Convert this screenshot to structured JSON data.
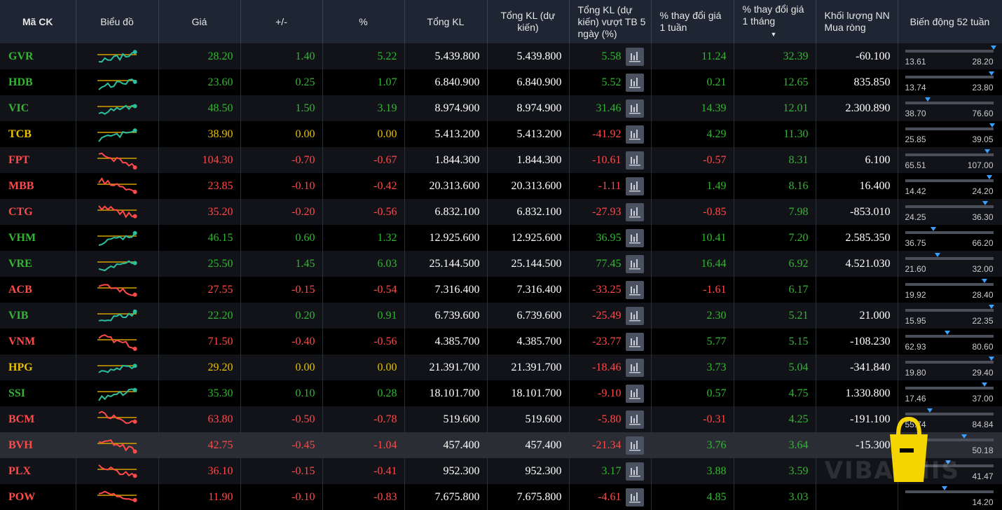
{
  "headers": {
    "symbol": "Mã CK",
    "chart": "Biểu đồ",
    "price": "Giá",
    "change": "+/-",
    "pct": "%",
    "total_vol": "Tổng KL",
    "est_vol": "Tổng KL (dự kiến)",
    "est_vs_avg": "Tổng KL (dự kiến) vượt TB 5 ngày (%)",
    "week_change": "% thay đổi giá 1 tuần",
    "month_change": "% thay đổi giá 1 tháng",
    "foreign_net": "Khối lượng NN Mua ròng",
    "range52": "Biến động 52 tuần"
  },
  "colors": {
    "up": "#33b733",
    "down": "#ff4a4a",
    "ref": "#e8c000",
    "teal": "#2bbfa0",
    "marker": "#3aa0ff"
  },
  "watermark": "VIBATHIS",
  "rows": [
    {
      "s": "GVR",
      "p": "28.20",
      "c": "1.40",
      "pct": "5.22",
      "tv": "5.439.800",
      "ev": "5.439.800",
      "ea": "5.58",
      "w": "11.24",
      "m": "32.39",
      "f": "-60.100",
      "lo": "13.61",
      "hi": "28.20",
      "pos": 1.0,
      "st": "up",
      "ea_st": "up",
      "w_st": "up",
      "m_st": "up"
    },
    {
      "s": "HDB",
      "p": "23.60",
      "c": "0.25",
      "pct": "1.07",
      "tv": "6.840.900",
      "ev": "6.840.900",
      "ea": "5.52",
      "w": "0.21",
      "m": "12.65",
      "f": "835.850",
      "lo": "13.74",
      "hi": "23.80",
      "pos": 0.98,
      "st": "up",
      "ea_st": "up",
      "w_st": "up",
      "m_st": "up"
    },
    {
      "s": "VIC",
      "p": "48.50",
      "c": "1.50",
      "pct": "3.19",
      "tv": "8.974.900",
      "ev": "8.974.900",
      "ea": "31.46",
      "w": "14.39",
      "m": "12.01",
      "f": "2.300.890",
      "lo": "38.70",
      "hi": "76.60",
      "pos": 0.26,
      "st": "up",
      "ea_st": "up",
      "w_st": "up",
      "m_st": "up"
    },
    {
      "s": "TCB",
      "p": "38.90",
      "c": "0.00",
      "pct": "0.00",
      "tv": "5.413.200",
      "ev": "5.413.200",
      "ea": "-41.92",
      "w": "4.29",
      "m": "11.30",
      "f": "",
      "lo": "25.85",
      "hi": "39.05",
      "pos": 0.99,
      "st": "ref",
      "ea_st": "down",
      "w_st": "up",
      "m_st": "up"
    },
    {
      "s": "FPT",
      "p": "104.30",
      "c": "-0.70",
      "pct": "-0.67",
      "tv": "1.844.300",
      "ev": "1.844.300",
      "ea": "-10.61",
      "w": "-0.57",
      "m": "8.31",
      "f": "6.100",
      "lo": "65.51",
      "hi": "107.00",
      "pos": 0.93,
      "st": "down",
      "ea_st": "down",
      "w_st": "down",
      "m_st": "up"
    },
    {
      "s": "MBB",
      "p": "23.85",
      "c": "-0.10",
      "pct": "-0.42",
      "tv": "20.313.600",
      "ev": "20.313.600",
      "ea": "-1.11",
      "w": "1.49",
      "m": "8.16",
      "f": "16.400",
      "lo": "14.42",
      "hi": "24.20",
      "pos": 0.96,
      "st": "down",
      "ea_st": "down",
      "w_st": "up",
      "m_st": "up"
    },
    {
      "s": "CTG",
      "p": "35.20",
      "c": "-0.20",
      "pct": "-0.56",
      "tv": "6.832.100",
      "ev": "6.832.100",
      "ea": "-27.93",
      "w": "-0.85",
      "m": "7.98",
      "f": "-853.010",
      "lo": "24.25",
      "hi": "36.30",
      "pos": 0.91,
      "st": "down",
      "ea_st": "down",
      "w_st": "down",
      "m_st": "up"
    },
    {
      "s": "VHM",
      "p": "46.15",
      "c": "0.60",
      "pct": "1.32",
      "tv": "12.925.600",
      "ev": "12.925.600",
      "ea": "36.95",
      "w": "10.41",
      "m": "7.20",
      "f": "2.585.350",
      "lo": "36.75",
      "hi": "66.20",
      "pos": 0.32,
      "st": "up",
      "ea_st": "up",
      "w_st": "up",
      "m_st": "up"
    },
    {
      "s": "VRE",
      "p": "25.50",
      "c": "1.45",
      "pct": "6.03",
      "tv": "25.144.500",
      "ev": "25.144.500",
      "ea": "77.45",
      "w": "16.44",
      "m": "6.92",
      "f": "4.521.030",
      "lo": "21.60",
      "hi": "32.00",
      "pos": 0.37,
      "st": "up",
      "ea_st": "up",
      "w_st": "up",
      "m_st": "up"
    },
    {
      "s": "ACB",
      "p": "27.55",
      "c": "-0.15",
      "pct": "-0.54",
      "tv": "7.316.400",
      "ev": "7.316.400",
      "ea": "-33.25",
      "w": "-1.61",
      "m": "6.17",
      "f": "",
      "lo": "19.92",
      "hi": "28.40",
      "pos": 0.9,
      "st": "down",
      "ea_st": "down",
      "w_st": "down",
      "m_st": "up"
    },
    {
      "s": "VIB",
      "p": "22.20",
      "c": "0.20",
      "pct": "0.91",
      "tv": "6.739.600",
      "ev": "6.739.600",
      "ea": "-25.49",
      "w": "2.30",
      "m": "5.21",
      "f": "21.000",
      "lo": "15.95",
      "hi": "22.35",
      "pos": 0.98,
      "st": "up",
      "ea_st": "down",
      "w_st": "up",
      "m_st": "up"
    },
    {
      "s": "VNM",
      "p": "71.50",
      "c": "-0.40",
      "pct": "-0.56",
      "tv": "4.385.700",
      "ev": "4.385.700",
      "ea": "-23.77",
      "w": "5.77",
      "m": "5.15",
      "f": "-108.230",
      "lo": "62.93",
      "hi": "80.60",
      "pos": 0.48,
      "st": "down",
      "ea_st": "down",
      "w_st": "up",
      "m_st": "up"
    },
    {
      "s": "HPG",
      "p": "29.20",
      "c": "0.00",
      "pct": "0.00",
      "tv": "21.391.700",
      "ev": "21.391.700",
      "ea": "-18.46",
      "w": "3.73",
      "m": "5.04",
      "f": "-341.840",
      "lo": "19.80",
      "hi": "29.40",
      "pos": 0.98,
      "st": "ref",
      "ea_st": "down",
      "w_st": "up",
      "m_st": "up"
    },
    {
      "s": "SSI",
      "p": "35.30",
      "c": "0.10",
      "pct": "0.28",
      "tv": "18.101.700",
      "ev": "18.101.700",
      "ea": "-9.10",
      "w": "0.57",
      "m": "4.75",
      "f": "1.330.800",
      "lo": "17.46",
      "hi": "37.00",
      "pos": 0.9,
      "st": "up",
      "ea_st": "down",
      "w_st": "up",
      "m_st": "up"
    },
    {
      "s": "BCM",
      "p": "63.80",
      "c": "-0.50",
      "pct": "-0.78",
      "tv": "519.600",
      "ev": "519.600",
      "ea": "-5.80",
      "w": "-0.31",
      "m": "4.25",
      "f": "-191.100",
      "lo": "55.74",
      "hi": "84.84",
      "pos": 0.28,
      "st": "down",
      "ea_st": "down",
      "w_st": "down",
      "m_st": "up"
    },
    {
      "s": "BVH",
      "p": "42.75",
      "c": "-0.45",
      "pct": "-1.04",
      "tv": "457.400",
      "ev": "457.400",
      "ea": "-21.34",
      "w": "3.76",
      "m": "3.64",
      "f": "-15.300",
      "lo": "27.69",
      "hi": "50.18",
      "pos": 0.67,
      "st": "down",
      "ea_st": "down",
      "w_st": "up",
      "m_st": "up"
    },
    {
      "s": "PLX",
      "p": "36.10",
      "c": "-0.15",
      "pct": "-0.41",
      "tv": "952.300",
      "ev": "952.300",
      "ea": "3.17",
      "w": "3.88",
      "m": "3.59",
      "f": "",
      "lo": "",
      "hi": "41.47",
      "pos": 0.49,
      "st": "down",
      "ea_st": "up",
      "w_st": "up",
      "m_st": "up"
    },
    {
      "s": "POW",
      "p": "11.90",
      "c": "-0.10",
      "pct": "-0.83",
      "tv": "7.675.800",
      "ev": "7.675.800",
      "ea": "-4.61",
      "w": "4.85",
      "m": "3.03",
      "f": "",
      "lo": "",
      "hi": "14.20",
      "pos": 0.45,
      "st": "down",
      "ea_st": "down",
      "w_st": "up",
      "m_st": "up"
    }
  ]
}
